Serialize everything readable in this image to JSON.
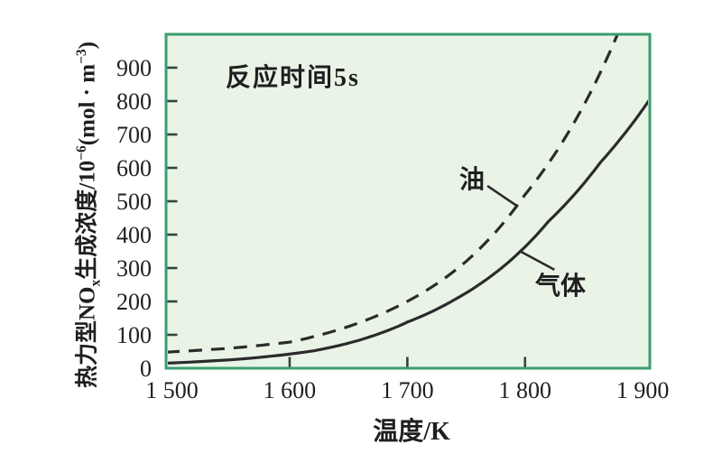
{
  "figure": {
    "background": "#ffffff"
  },
  "chart_data": {
    "type": "line",
    "annotation": "反应时间5s",
    "xlabel": "温度/K",
    "ylabel_text": "热力型NOx生成浓度/10−6(mol·m−3)",
    "ylabel_parts": {
      "p1": "热力型NO",
      "sub": "x",
      "p2": "生成浓度/10",
      "sup1": "−6",
      "p3": "(mol · m",
      "sup2": "−3",
      "p4": ")"
    },
    "x_range": [
      1495,
      1906
    ],
    "y_range": [
      0,
      1000
    ],
    "grid": false,
    "legend_position": "inline-curve-labels",
    "x_tick_labels": [
      {
        "label": "1 500",
        "value": 1500
      },
      {
        "label": "1 600",
        "value": 1600
      },
      {
        "label": "1 700",
        "value": 1700
      },
      {
        "label": "1 800",
        "value": 1800
      },
      {
        "label": "1 900",
        "value": 1900
      }
    ],
    "x_tick_marks": [
      1600,
      1700,
      1800
    ],
    "y_tick_labels": [
      {
        "label": "0",
        "value": 0
      },
      {
        "label": "100",
        "value": 100
      },
      {
        "label": "200",
        "value": 200
      },
      {
        "label": "300",
        "value": 300
      },
      {
        "label": "400",
        "value": 400
      },
      {
        "label": "500",
        "value": 500
      },
      {
        "label": "600",
        "value": 600
      },
      {
        "label": "700",
        "value": 700
      },
      {
        "label": "800",
        "value": 800
      },
      {
        "label": "900",
        "value": 900
      }
    ],
    "y_tick_marks": [
      100,
      200,
      300,
      400,
      500,
      600,
      700,
      800,
      900
    ],
    "series": [
      {
        "name": "油",
        "style": "dashed",
        "points": [
          [
            1495,
            48
          ],
          [
            1550,
            60
          ],
          [
            1600,
            78
          ],
          [
            1650,
            125
          ],
          [
            1700,
            200
          ],
          [
            1750,
            320
          ],
          [
            1800,
            520
          ],
          [
            1840,
            725
          ],
          [
            1880,
            1012
          ]
        ]
      },
      {
        "name": "气体",
        "style": "solid",
        "points": [
          [
            1495,
            15
          ],
          [
            1560,
            28
          ],
          [
            1620,
            52
          ],
          [
            1660,
            85
          ],
          [
            1700,
            138
          ],
          [
            1740,
            205
          ],
          [
            1780,
            300
          ],
          [
            1820,
            440
          ],
          [
            1864,
            616
          ],
          [
            1906,
            805
          ]
        ]
      }
    ],
    "leaders": [
      {
        "series": "油",
        "from": [
          1768,
          546
        ],
        "to": [
          1794,
          484
        ]
      },
      {
        "series": "气体",
        "from": [
          1796,
          350
        ],
        "to": [
          1825,
          295
        ]
      }
    ],
    "colors": {
      "plot_bg": "#e9f4e7",
      "plot_border": "#3a9e6f",
      "curve": "#2b2b2b",
      "tick": "#33463c",
      "text": "#1f1f1f"
    }
  }
}
